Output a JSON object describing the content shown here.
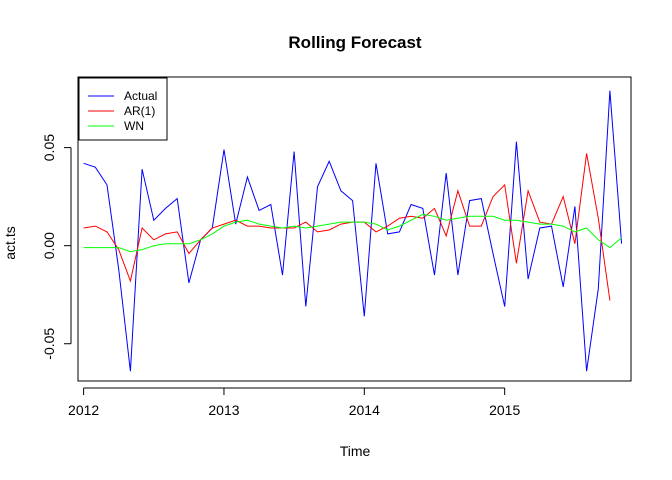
{
  "chart_data": {
    "type": "line",
    "title": "Rolling Forecast",
    "xlabel": "Time",
    "ylabel": "act.ts",
    "xlim": [
      2011.96,
      2015.9
    ],
    "ylim": [
      -0.069,
      0.086
    ],
    "x_ticks": [
      2012,
      2013,
      2014,
      2015
    ],
    "x_tick_labels": [
      "2012",
      "2013",
      "2014",
      "2015"
    ],
    "y_ticks": [
      -0.05,
      0.0,
      0.05
    ],
    "y_tick_labels": [
      "-0.05",
      "0.00",
      "0.05"
    ],
    "grid": false,
    "legend_position": "top-left",
    "x_start": 2012,
    "x_step": 0.0833333,
    "series": [
      {
        "name": "Actual",
        "color": "#0000ff",
        "values": [
          0.042,
          0.04,
          0.031,
          -0.012,
          -0.064,
          0.039,
          0.013,
          0.019,
          0.024,
          -0.019,
          0.003,
          0.009,
          0.049,
          0.011,
          0.035,
          0.018,
          0.021,
          -0.015,
          0.048,
          -0.031,
          0.03,
          0.043,
          0.028,
          0.023,
          -0.036,
          0.042,
          0.006,
          0.007,
          0.021,
          0.019,
          -0.015,
          0.037,
          -0.015,
          0.023,
          0.024,
          -0.004,
          -0.031,
          0.053,
          -0.017,
          0.009,
          0.01,
          -0.021,
          0.02,
          -0.064,
          -0.022,
          0.079,
          0.001
        ]
      },
      {
        "name": "AR(1)",
        "color": "#ff0000",
        "values": [
          0.009,
          0.01,
          0.007,
          -0.002,
          -0.018,
          0.009,
          0.003,
          0.006,
          0.007,
          -0.004,
          0.003,
          0.009,
          0.011,
          0.013,
          0.01,
          0.01,
          0.009,
          0.009,
          0.009,
          0.012,
          0.007,
          0.008,
          0.011,
          0.012,
          0.012,
          0.007,
          0.01,
          0.014,
          0.015,
          0.014,
          0.019,
          0.005,
          0.028,
          0.01,
          0.01,
          0.025,
          0.031,
          -0.009,
          0.028,
          0.012,
          0.011,
          0.025,
          0.001,
          0.047,
          0.014,
          -0.028
        ]
      },
      {
        "name": "WN",
        "color": "#00ff00",
        "values": [
          -0.001,
          -0.001,
          -0.001,
          -0.001,
          -0.003,
          -0.002,
          0.0,
          0.001,
          0.001,
          0.001,
          0.003,
          0.006,
          0.01,
          0.012,
          0.013,
          0.011,
          0.01,
          0.009,
          0.01,
          0.009,
          0.01,
          0.011,
          0.012,
          0.012,
          0.012,
          0.011,
          0.008,
          0.01,
          0.013,
          0.016,
          0.015,
          0.013,
          0.014,
          0.015,
          0.015,
          0.015,
          0.013,
          0.013,
          0.012,
          0.011,
          0.011,
          0.01,
          0.007,
          0.009,
          0.003,
          -0.001,
          0.004
        ]
      }
    ]
  }
}
